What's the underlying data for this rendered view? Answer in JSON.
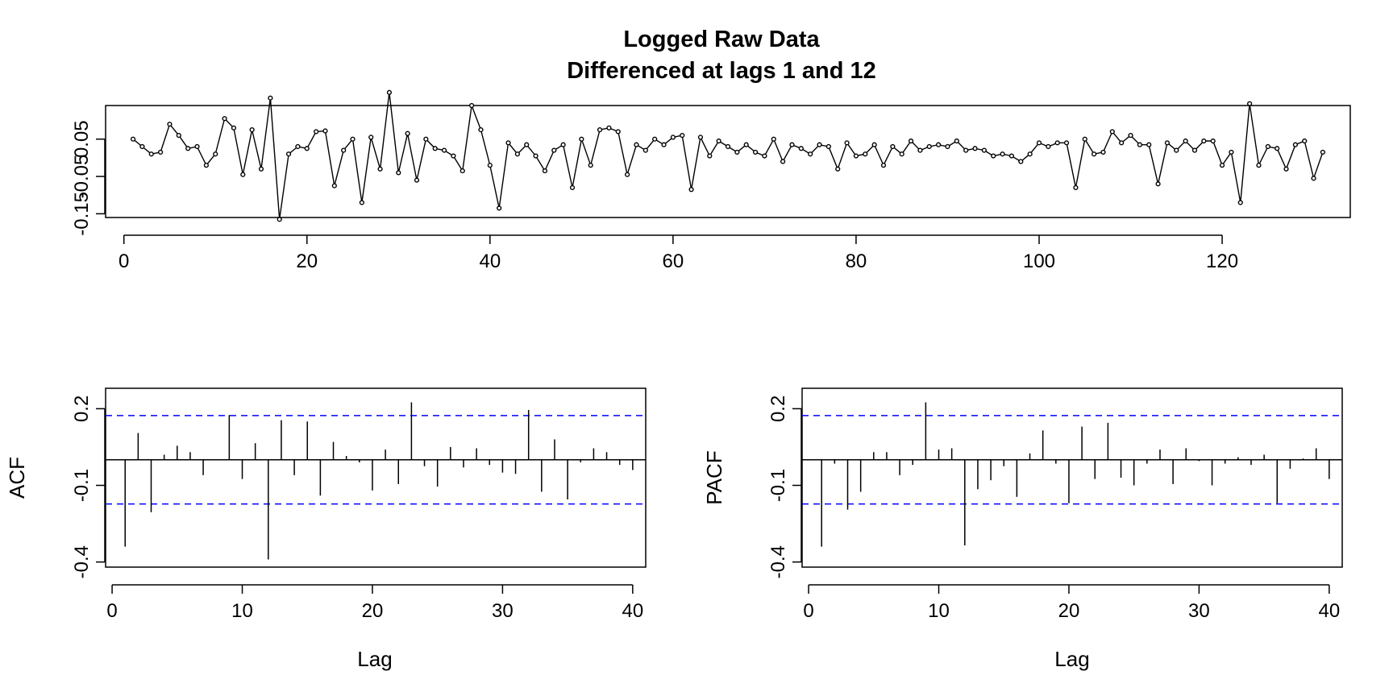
{
  "figure": {
    "title": "Logged Raw Data",
    "subtitle": "Differenced at lags 1 and 12",
    "colors": {
      "line": "#000000",
      "conf_band": "#0000ff",
      "background": "#ffffff"
    }
  },
  "chart_data": [
    {
      "id": "series",
      "type": "line",
      "title": "Logged Raw Data",
      "subtitle": "Differenced at lags 1 and 12",
      "markers": "open-circle",
      "xlabel": "",
      "ylabel": "",
      "xlim": [
        -2,
        134
      ],
      "ylim": [
        -0.16,
        0.14
      ],
      "x_ticks": [
        0,
        20,
        40,
        60,
        80,
        100,
        120
      ],
      "y_ticks": [
        -0.15,
        -0.05,
        0.05
      ],
      "y_tick_labels": [
        "-0.15",
        "-0.05",
        "0.05"
      ],
      "x": [
        1,
        2,
        3,
        4,
        5,
        6,
        7,
        8,
        9,
        10,
        11,
        12,
        13,
        14,
        15,
        16,
        17,
        18,
        19,
        20,
        21,
        22,
        23,
        24,
        25,
        26,
        27,
        28,
        29,
        30,
        31,
        32,
        33,
        34,
        35,
        36,
        37,
        38,
        39,
        40,
        41,
        42,
        43,
        44,
        45,
        46,
        47,
        48,
        49,
        50,
        51,
        52,
        53,
        54,
        55,
        56,
        57,
        58,
        59,
        60,
        61,
        62,
        63,
        64,
        65,
        66,
        67,
        68,
        69,
        70,
        71,
        72,
        73,
        74,
        75,
        76,
        77,
        78,
        79,
        80,
        81,
        82,
        83,
        84,
        85,
        86,
        87,
        88,
        89,
        90,
        91,
        92,
        93,
        94,
        95,
        96,
        97,
        98,
        99,
        100,
        101,
        102,
        103,
        104,
        105,
        106,
        107,
        108,
        109,
        110,
        111,
        112,
        113,
        114,
        115,
        116,
        117,
        118,
        119,
        120,
        121,
        122,
        123,
        124,
        125,
        126,
        127,
        128,
        129,
        130,
        131
      ],
      "y": [
        0.05,
        0.03,
        0.01,
        0.015,
        0.09,
        0.06,
        0.025,
        0.03,
        -0.02,
        0.01,
        0.105,
        0.08,
        -0.045,
        0.075,
        -0.03,
        0.16,
        -0.165,
        0.01,
        0.03,
        0.025,
        0.07,
        0.072,
        -0.075,
        0.02,
        0.05,
        -0.12,
        0.055,
        -0.03,
        0.175,
        -0.04,
        0.065,
        -0.06,
        0.05,
        0.025,
        0.02,
        0.005,
        -0.035,
        0.14,
        0.075,
        -0.02,
        -0.135,
        0.04,
        0.01,
        0.035,
        0.005,
        -0.035,
        0.02,
        0.035,
        -0.08,
        0.05,
        -0.02,
        0.075,
        0.08,
        0.07,
        -0.045,
        0.035,
        0.02,
        0.05,
        0.035,
        0.055,
        0.06,
        -0.085,
        0.055,
        0.005,
        0.045,
        0.03,
        0.015,
        0.035,
        0.015,
        0.005,
        0.05,
        -0.01,
        0.035,
        0.025,
        0.01,
        0.035,
        0.03,
        -0.03,
        0.04,
        0.005,
        0.01,
        0.035,
        -0.02,
        0.03,
        0.01,
        0.045,
        0.02,
        0.03,
        0.035,
        0.03,
        0.045,
        0.02,
        0.025,
        0.02,
        0.005,
        0.01,
        0.005,
        -0.01,
        0.01,
        0.04,
        0.03,
        0.04,
        0.04,
        -0.08,
        0.05,
        0.01,
        0.015,
        0.07,
        0.04,
        0.06,
        0.035,
        0.035,
        -0.07,
        0.04,
        0.02,
        0.045,
        0.02,
        0.045,
        0.045,
        -0.02,
        0.015,
        -0.12,
        0.145,
        -0.02,
        0.03,
        0.025,
        -0.03,
        0.035,
        0.045,
        -0.055,
        0.015
      ]
    },
    {
      "id": "acf",
      "type": "bar",
      "title": "",
      "xlabel": "Lag",
      "ylabel": "ACF",
      "xlim": [
        -0.5,
        41
      ],
      "ylim": [
        -0.42,
        0.28
      ],
      "x_ticks": [
        0,
        10,
        20,
        30,
        40
      ],
      "y_ticks": [
        -0.4,
        -0.1,
        0.2
      ],
      "y_tick_labels": [
        "-0.4",
        "-0.1",
        "0.2"
      ],
      "conf_limit": 0.173,
      "lags": [
        1,
        2,
        3,
        4,
        5,
        6,
        7,
        8,
        9,
        10,
        11,
        12,
        13,
        14,
        15,
        16,
        17,
        18,
        19,
        20,
        21,
        22,
        23,
        24,
        25,
        26,
        27,
        28,
        29,
        30,
        31,
        32,
        33,
        34,
        35,
        36,
        37,
        38,
        39,
        40
      ],
      "values": [
        -0.34,
        0.105,
        -0.205,
        0.02,
        0.055,
        0.03,
        -0.06,
        0,
        0.175,
        -0.075,
        0.065,
        -0.39,
        0.155,
        -0.06,
        0.15,
        -0.14,
        0.07,
        0.015,
        -0.01,
        -0.12,
        0.04,
        -0.095,
        0.225,
        -0.025,
        -0.105,
        0.05,
        -0.03,
        0.045,
        -0.02,
        -0.05,
        -0.055,
        0.195,
        -0.125,
        0.08,
        -0.155,
        -0.01,
        0.045,
        0.03,
        -0.02,
        -0.04
      ]
    },
    {
      "id": "pacf",
      "type": "bar",
      "title": "",
      "xlabel": "Lag",
      "ylabel": "PACF",
      "xlim": [
        -0.5,
        41
      ],
      "ylim": [
        -0.42,
        0.28
      ],
      "x_ticks": [
        0,
        10,
        20,
        30,
        40
      ],
      "y_ticks": [
        -0.4,
        -0.1,
        0.2
      ],
      "y_tick_labels": [
        "-0.4",
        "-0.1",
        "0.2"
      ],
      "conf_limit": 0.173,
      "lags": [
        1,
        2,
        3,
        4,
        5,
        6,
        7,
        8,
        9,
        10,
        11,
        12,
        13,
        14,
        15,
        16,
        17,
        18,
        19,
        20,
        21,
        22,
        23,
        24,
        25,
        26,
        27,
        28,
        29,
        30,
        31,
        32,
        33,
        34,
        35,
        36,
        37,
        38,
        39,
        40
      ],
      "values": [
        -0.34,
        -0.015,
        -0.195,
        -0.125,
        0.03,
        0.03,
        -0.06,
        -0.02,
        0.225,
        0.04,
        0.045,
        -0.335,
        -0.115,
        -0.08,
        -0.025,
        -0.145,
        0.025,
        0.115,
        -0.015,
        -0.17,
        0.13,
        -0.075,
        0.145,
        -0.07,
        -0.1,
        -0.015,
        0.04,
        -0.095,
        0.045,
        -0.005,
        -0.1,
        -0.015,
        0.01,
        -0.02,
        0.02,
        -0.17,
        -0.035,
        0.005,
        0.045,
        -0.075
      ]
    }
  ]
}
